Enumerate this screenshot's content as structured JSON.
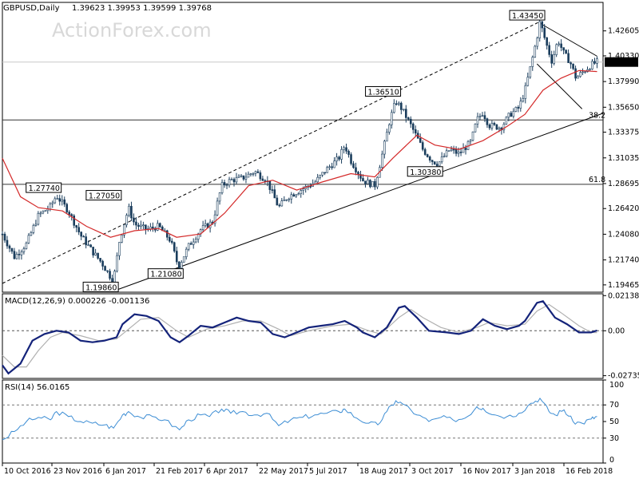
{
  "chart_data": [
    {
      "type": "candlestick",
      "symbol_label": "GBPUSD,Daily",
      "ohlc_label": "1.39623 1.39953 1.39599 1.39768",
      "watermark": "ActionForex.com",
      "current_price": 1.39768,
      "current_price_label": "1.39768",
      "ylim": [
        1.188,
        1.452
      ],
      "y_ticks": [
        "1.42605",
        "1.40330",
        "1.37990",
        "1.35650",
        "1.33375",
        "1.31035",
        "1.28695",
        "1.26420",
        "1.24080",
        "1.21740",
        "1.19465"
      ],
      "x_ticks": [
        "10 Oct 2016",
        "23 Nov 2016",
        "6 Jan 2017",
        "21 Feb 2017",
        "6 Apr 2017",
        "22 May 2017",
        "5 Jul 2017",
        "18 Aug 2017",
        "3 Oct 2017",
        "16 Nov 2017",
        "3 Jan 2018",
        "16 Feb 2018"
      ],
      "swing_labels": [
        {
          "text": "1.27740",
          "t": 0.09,
          "v": 1.2774
        },
        {
          "text": "1.19860",
          "t": 0.185,
          "v": 1.1986
        },
        {
          "text": "1.27050",
          "t": 0.19,
          "v": 1.2705
        },
        {
          "text": "1.21080",
          "t": 0.293,
          "v": 1.2108
        },
        {
          "text": "1.36510",
          "t": 0.655,
          "v": 1.3651
        },
        {
          "text": "1.30380",
          "t": 0.725,
          "v": 1.3038
        },
        {
          "text": "1.43450",
          "t": 0.895,
          "v": 1.4345
        }
      ],
      "fib_levels": [
        {
          "label": "61.8",
          "value": 1.2863
        },
        {
          "label": "38.2",
          "value": 1.3449
        }
      ],
      "sma_label": "",
      "close_path": [
        [
          0.0,
          1.241
        ],
        [
          0.02,
          1.22
        ],
        [
          0.04,
          1.232
        ],
        [
          0.06,
          1.258
        ],
        [
          0.08,
          1.266
        ],
        [
          0.09,
          1.276
        ],
        [
          0.11,
          1.262
        ],
        [
          0.13,
          1.24
        ],
        [
          0.15,
          1.225
        ],
        [
          0.165,
          1.215
        ],
        [
          0.18,
          1.202
        ],
        [
          0.185,
          1.199
        ],
        [
          0.195,
          1.235
        ],
        [
          0.21,
          1.265
        ],
        [
          0.22,
          1.25
        ],
        [
          0.24,
          1.245
        ],
        [
          0.26,
          1.248
        ],
        [
          0.28,
          1.235
        ],
        [
          0.293,
          1.211
        ],
        [
          0.31,
          1.23
        ],
        [
          0.33,
          1.245
        ],
        [
          0.35,
          1.252
        ],
        [
          0.365,
          1.285
        ],
        [
          0.38,
          1.29
        ],
        [
          0.4,
          1.292
        ],
        [
          0.42,
          1.298
        ],
        [
          0.44,
          1.29
        ],
        [
          0.46,
          1.265
        ],
        [
          0.475,
          1.275
        ],
        [
          0.5,
          1.282
        ],
        [
          0.52,
          1.288
        ],
        [
          0.54,
          1.3
        ],
        [
          0.56,
          1.31
        ],
        [
          0.57,
          1.322
        ],
        [
          0.58,
          1.308
        ],
        [
          0.6,
          1.29
        ],
        [
          0.62,
          1.285
        ],
        [
          0.635,
          1.32
        ],
        [
          0.645,
          1.345
        ],
        [
          0.655,
          1.362
        ],
        [
          0.665,
          1.355
        ],
        [
          0.68,
          1.34
        ],
        [
          0.7,
          1.318
        ],
        [
          0.715,
          1.308
        ],
        [
          0.725,
          1.305
        ],
        [
          0.745,
          1.318
        ],
        [
          0.76,
          1.314
        ],
        [
          0.78,
          1.325
        ],
        [
          0.79,
          1.345
        ],
        [
          0.8,
          1.352
        ],
        [
          0.81,
          1.34
        ],
        [
          0.83,
          1.338
        ],
        [
          0.845,
          1.35
        ],
        [
          0.86,
          1.356
        ],
        [
          0.87,
          1.372
        ],
        [
          0.88,
          1.395
        ],
        [
          0.89,
          1.42
        ],
        [
          0.895,
          1.4345
        ],
        [
          0.905,
          1.415
        ],
        [
          0.915,
          1.398
        ],
        [
          0.925,
          1.418
        ],
        [
          0.935,
          1.405
        ],
        [
          0.945,
          1.398
        ],
        [
          0.955,
          1.383
        ],
        [
          0.965,
          1.388
        ],
        [
          0.98,
          1.395
        ],
        [
          0.99,
          1.3977
        ]
      ],
      "sma_path": [
        [
          0.0,
          1.31
        ],
        [
          0.03,
          1.275
        ],
        [
          0.06,
          1.265
        ],
        [
          0.1,
          1.262
        ],
        [
          0.14,
          1.248
        ],
        [
          0.18,
          1.238
        ],
        [
          0.22,
          1.244
        ],
        [
          0.26,
          1.246
        ],
        [
          0.29,
          1.238
        ],
        [
          0.33,
          1.241
        ],
        [
          0.37,
          1.26
        ],
        [
          0.41,
          1.285
        ],
        [
          0.45,
          1.29
        ],
        [
          0.49,
          1.281
        ],
        [
          0.53,
          1.288
        ],
        [
          0.58,
          1.296
        ],
        [
          0.62,
          1.293
        ],
        [
          0.65,
          1.31
        ],
        [
          0.69,
          1.331
        ],
        [
          0.72,
          1.322
        ],
        [
          0.76,
          1.318
        ],
        [
          0.8,
          1.326
        ],
        [
          0.84,
          1.339
        ],
        [
          0.87,
          1.35
        ],
        [
          0.9,
          1.372
        ],
        [
          0.93,
          1.383
        ],
        [
          0.96,
          1.39
        ],
        [
          0.99,
          1.389
        ]
      ],
      "channel_upper": [
        [
          0.0,
          1.196
        ],
        [
          0.895,
          1.4345
        ]
      ],
      "channel_lower": [
        [
          0.19,
          1.19
        ],
        [
          1.0,
          1.351
        ]
      ],
      "wedge_upper": [
        [
          0.895,
          1.433
        ],
        [
          0.99,
          1.403
        ]
      ],
      "wedge_lower": [
        [
          0.89,
          1.396
        ],
        [
          0.965,
          1.355
        ]
      ]
    },
    {
      "type": "line",
      "label": "MACD(12,26,9) 0.000226 -0.001136",
      "ylim": [
        -0.029,
        0.0225
      ],
      "y_ticks": [
        {
          "text": "0.021384",
          "value": 0.021384
        },
        {
          "text": "0.00",
          "value": 0.0
        },
        {
          "text": "-0.027353",
          "value": -0.027353
        }
      ],
      "zero_line": 0.0,
      "series": [
        {
          "role": "macd",
          "points": [
            [
              0.0,
              -0.021
            ],
            [
              0.01,
              -0.026
            ],
            [
              0.03,
              -0.02
            ],
            [
              0.05,
              -0.006
            ],
            [
              0.07,
              -0.002
            ],
            [
              0.09,
              0.0
            ],
            [
              0.11,
              -0.001
            ],
            [
              0.13,
              -0.006
            ],
            [
              0.15,
              -0.007
            ],
            [
              0.17,
              -0.006
            ],
            [
              0.19,
              -0.004
            ],
            [
              0.2,
              0.004
            ],
            [
              0.22,
              0.01
            ],
            [
              0.24,
              0.009
            ],
            [
              0.26,
              0.006
            ],
            [
              0.28,
              -0.004
            ],
            [
              0.295,
              -0.007
            ],
            [
              0.31,
              -0.003
            ],
            [
              0.33,
              0.003
            ],
            [
              0.35,
              0.002
            ],
            [
              0.37,
              0.005
            ],
            [
              0.39,
              0.008
            ],
            [
              0.41,
              0.006
            ],
            [
              0.43,
              0.005
            ],
            [
              0.45,
              -0.002
            ],
            [
              0.47,
              -0.004
            ],
            [
              0.49,
              -0.001
            ],
            [
              0.51,
              0.002
            ],
            [
              0.53,
              0.003
            ],
            [
              0.55,
              0.004
            ],
            [
              0.57,
              0.006
            ],
            [
              0.59,
              0.002
            ],
            [
              0.6,
              -0.001
            ],
            [
              0.62,
              -0.004
            ],
            [
              0.64,
              0.002
            ],
            [
              0.66,
              0.014
            ],
            [
              0.67,
              0.015
            ],
            [
              0.69,
              0.008
            ],
            [
              0.71,
              0.0
            ],
            [
              0.74,
              -0.001
            ],
            [
              0.76,
              -0.002
            ],
            [
              0.78,
              0.0
            ],
            [
              0.8,
              0.007
            ],
            [
              0.82,
              0.003
            ],
            [
              0.84,
              0.001
            ],
            [
              0.86,
              0.003
            ],
            [
              0.87,
              0.006
            ],
            [
              0.89,
              0.017
            ],
            [
              0.9,
              0.018
            ],
            [
              0.92,
              0.008
            ],
            [
              0.94,
              0.004
            ],
            [
              0.96,
              -0.001
            ],
            [
              0.98,
              -0.001
            ],
            [
              0.99,
              0.0002
            ]
          ]
        },
        {
          "role": "signal",
          "points": [
            [
              0.0,
              -0.015
            ],
            [
              0.02,
              -0.022
            ],
            [
              0.04,
              -0.022
            ],
            [
              0.06,
              -0.012
            ],
            [
              0.08,
              -0.004
            ],
            [
              0.1,
              -0.001
            ],
            [
              0.13,
              -0.003
            ],
            [
              0.16,
              -0.006
            ],
            [
              0.19,
              -0.005
            ],
            [
              0.21,
              0.001
            ],
            [
              0.23,
              0.007
            ],
            [
              0.26,
              0.008
            ],
            [
              0.29,
              0.0
            ],
            [
              0.31,
              -0.004
            ],
            [
              0.34,
              0.001
            ],
            [
              0.37,
              0.003
            ],
            [
              0.4,
              0.006
            ],
            [
              0.43,
              0.006
            ],
            [
              0.46,
              0.001
            ],
            [
              0.48,
              -0.003
            ],
            [
              0.51,
              0.0
            ],
            [
              0.55,
              0.003
            ],
            [
              0.58,
              0.004
            ],
            [
              0.61,
              0.0
            ],
            [
              0.63,
              -0.002
            ],
            [
              0.66,
              0.008
            ],
            [
              0.68,
              0.013
            ],
            [
              0.7,
              0.008
            ],
            [
              0.73,
              0.002
            ],
            [
              0.76,
              -0.001
            ],
            [
              0.79,
              0.002
            ],
            [
              0.81,
              0.005
            ],
            [
              0.84,
              0.003
            ],
            [
              0.87,
              0.004
            ],
            [
              0.89,
              0.012
            ],
            [
              0.91,
              0.016
            ],
            [
              0.93,
              0.011
            ],
            [
              0.96,
              0.003
            ],
            [
              0.98,
              -0.001
            ],
            [
              0.99,
              -0.0011
            ]
          ]
        }
      ]
    },
    {
      "type": "line",
      "label": "RSI(14) 56.0165",
      "ylim": [
        0,
        100
      ],
      "y_ticks": [
        {
          "text": "100",
          "value": 100
        },
        {
          "text": "70",
          "value": 70
        },
        {
          "text": "50",
          "value": 50
        },
        {
          "text": "30",
          "value": 30
        },
        {
          "text": "0",
          "value": 0
        }
      ],
      "reference_levels": [
        70,
        30
      ],
      "series": [
        {
          "role": "rsi",
          "points": [
            [
              0.0,
              28
            ],
            [
              0.02,
              38
            ],
            [
              0.04,
              50
            ],
            [
              0.06,
              55
            ],
            [
              0.08,
              52
            ],
            [
              0.09,
              62
            ],
            [
              0.11,
              56
            ],
            [
              0.13,
              50
            ],
            [
              0.15,
              48
            ],
            [
              0.17,
              46
            ],
            [
              0.185,
              42
            ],
            [
              0.2,
              58
            ],
            [
              0.21,
              62
            ],
            [
              0.23,
              55
            ],
            [
              0.25,
              56
            ],
            [
              0.27,
              52
            ],
            [
              0.295,
              40
            ],
            [
              0.31,
              52
            ],
            [
              0.33,
              58
            ],
            [
              0.345,
              56
            ],
            [
              0.365,
              65
            ],
            [
              0.38,
              60
            ],
            [
              0.4,
              62
            ],
            [
              0.42,
              58
            ],
            [
              0.44,
              60
            ],
            [
              0.46,
              45
            ],
            [
              0.48,
              52
            ],
            [
              0.5,
              55
            ],
            [
              0.52,
              58
            ],
            [
              0.54,
              60
            ],
            [
              0.56,
              62
            ],
            [
              0.57,
              65
            ],
            [
              0.59,
              54
            ],
            [
              0.61,
              48
            ],
            [
              0.625,
              46
            ],
            [
              0.64,
              62
            ],
            [
              0.655,
              75
            ],
            [
              0.67,
              70
            ],
            [
              0.69,
              58
            ],
            [
              0.71,
              50
            ],
            [
              0.73,
              55
            ],
            [
              0.75,
              52
            ],
            [
              0.77,
              54
            ],
            [
              0.79,
              68
            ],
            [
              0.8,
              66
            ],
            [
              0.82,
              58
            ],
            [
              0.84,
              56
            ],
            [
              0.86,
              60
            ],
            [
              0.88,
              72
            ],
            [
              0.895,
              78
            ],
            [
              0.91,
              62
            ],
            [
              0.92,
              58
            ],
            [
              0.935,
              64
            ],
            [
              0.95,
              50
            ],
            [
              0.965,
              48
            ],
            [
              0.98,
              53
            ],
            [
              0.99,
              56
            ]
          ]
        }
      ]
    }
  ]
}
